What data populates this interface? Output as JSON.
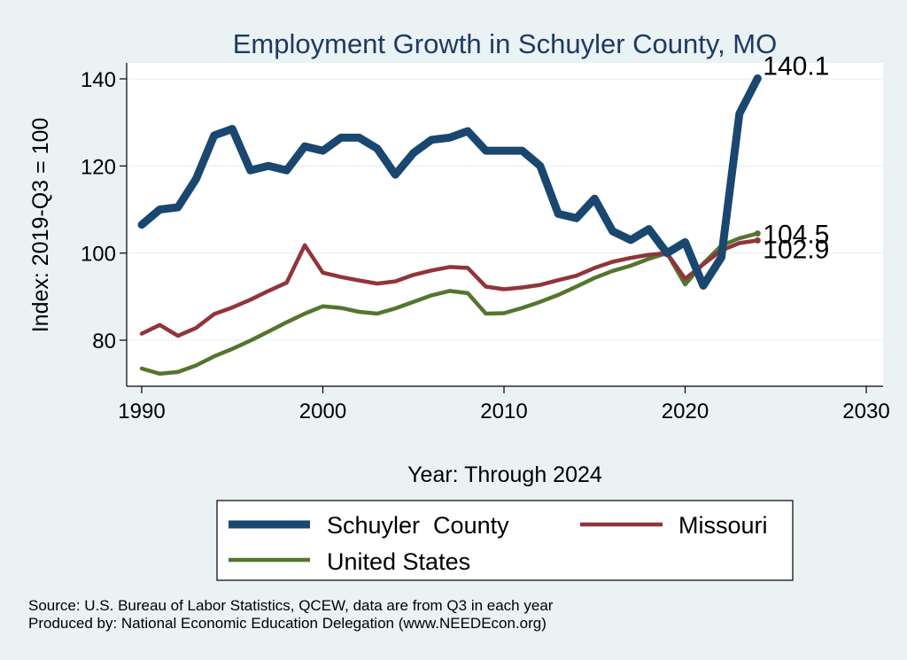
{
  "chart_data": {
    "type": "line",
    "title": "Employment Growth in Schuyler County, MO",
    "xlabel": "Year: Through 2024",
    "ylabel": "Index: 2019-Q3 = 100",
    "xlim": [
      1990,
      2030
    ],
    "ylim": [
      69,
      143
    ],
    "xticks": [
      1990,
      2000,
      2010,
      2020,
      2030
    ],
    "yticks": [
      80,
      100,
      120,
      140
    ],
    "x": [
      1990,
      1991,
      1992,
      1993,
      1994,
      1995,
      1996,
      1997,
      1998,
      1999,
      2000,
      2001,
      2002,
      2003,
      2004,
      2005,
      2006,
      2007,
      2008,
      2009,
      2010,
      2011,
      2012,
      2013,
      2014,
      2015,
      2016,
      2017,
      2018,
      2019,
      2020,
      2021,
      2022,
      2023,
      2024
    ],
    "series": [
      {
        "name": "Schuyler  County",
        "color": "#1a476f",
        "end_label": "140.1",
        "values": [
          106.5,
          110,
          110.5,
          117,
          127,
          128.5,
          119,
          120,
          119,
          124.5,
          123.5,
          126.5,
          126.5,
          124,
          118,
          123,
          126,
          126.5,
          128,
          123.5,
          123.5,
          123.5,
          120,
          109,
          108,
          112.5,
          105,
          103,
          105.5,
          100,
          102.5,
          92.5,
          99,
          132,
          140.1
        ]
      },
      {
        "name": "Missouri",
        "color": "#90353b",
        "end_label": "102.9",
        "values": [
          81.5,
          83.5,
          81,
          82.8,
          86,
          87.5,
          89.3,
          91.3,
          93.2,
          101.8,
          95.5,
          94.5,
          93.7,
          93,
          93.5,
          95,
          96,
          96.8,
          96.6,
          92.3,
          91.7,
          92.1,
          92.7,
          93.8,
          94.8,
          96.6,
          98,
          98.9,
          99.6,
          100,
          94.1,
          97.4,
          100.6,
          102.3,
          102.9
        ]
      },
      {
        "name": "United States",
        "color": "#55752f",
        "end_label": "104.5",
        "values": [
          73.5,
          72.3,
          72.7,
          74.2,
          76.3,
          78,
          79.9,
          82,
          84.1,
          86.1,
          87.8,
          87.4,
          86.5,
          86.1,
          87.3,
          88.8,
          90.3,
          91.3,
          90.8,
          86.1,
          86.2,
          87.4,
          88.8,
          90.4,
          92.3,
          94.3,
          95.9,
          97.1,
          98.7,
          100,
          92.8,
          97.6,
          101.7,
          103.4,
          104.5
        ]
      }
    ],
    "legend": [
      {
        "label": "Schuyler  County",
        "color": "#1a476f",
        "thickness": "thick"
      },
      {
        "label": "Missouri",
        "color": "#90353b",
        "thickness": "medium"
      },
      {
        "label": "United States",
        "color": "#55752f",
        "thickness": "medium"
      }
    ],
    "notes": [
      "Source: U.S. Bureau of Labor Statistics, QCEW, data are from Q3 in each year",
      "Produced by: National Economic Education Delegation (www.NEEDEcon.org)"
    ]
  }
}
